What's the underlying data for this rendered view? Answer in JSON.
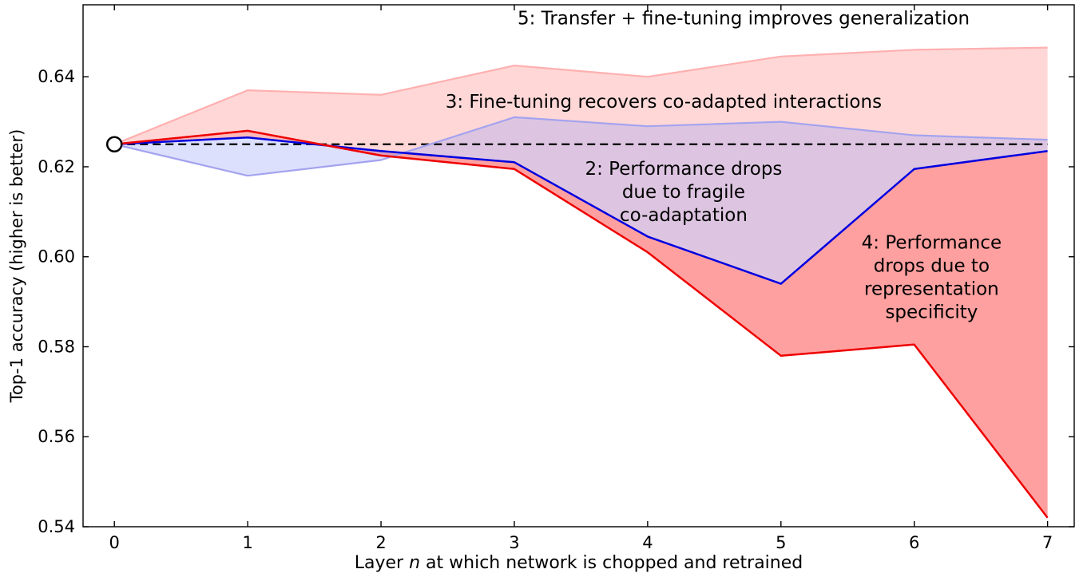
{
  "figure": {
    "background": "#ffffff",
    "frame_color": "#000000"
  },
  "chart_data": {
    "type": "line",
    "title": "",
    "xlabel_prefix": "Layer ",
    "xlabel_var": "n",
    "xlabel_suffix": " at which network is chopped and retrained",
    "ylabel": "Top-1 accuracy (higher is better)",
    "x": [
      0,
      1,
      2,
      3,
      4,
      5,
      6,
      7
    ],
    "xtick_labels": [
      "0",
      "1",
      "2",
      "3",
      "4",
      "5",
      "6",
      "7"
    ],
    "yticks": [
      0.54,
      0.56,
      0.58,
      0.6,
      0.62,
      0.64
    ],
    "ytick_labels": [
      "0.54",
      "0.56",
      "0.58",
      "0.60",
      "0.62",
      "0.64"
    ],
    "xlim": [
      -0.235,
      7.2
    ],
    "ylim": [
      0.54,
      0.656
    ],
    "grid": false,
    "legend": "none",
    "baseline": {
      "value": 0.625,
      "x_start": 0,
      "x_end": 7,
      "color": "#000000",
      "dash": "10 6",
      "width": 2.2
    },
    "start_marker": {
      "x": 0,
      "y": 0.625,
      "shape": "circle",
      "radius": 9,
      "fill": "#ffffff",
      "stroke": "#000000",
      "stroke_width": 2.5
    },
    "series": [
      {
        "id": "transfer-finetune",
        "region_number": "5",
        "color": "#ffb0b0",
        "width": 2.2,
        "values": [
          0.625,
          0.637,
          0.636,
          0.6425,
          0.64,
          0.6445,
          0.646,
          0.6465
        ]
      },
      {
        "id": "finetune-recovery",
        "region_number": "3",
        "color": "#a3a3ef",
        "width": 2.2,
        "values": [
          0.625,
          0.618,
          0.6215,
          0.631,
          0.629,
          0.63,
          0.627,
          0.626
        ]
      },
      {
        "id": "fragile-coadaptation",
        "region_number": "2",
        "color": "#0000e0",
        "width": 2.5,
        "values": [
          0.625,
          0.6265,
          0.6235,
          0.621,
          0.6045,
          0.594,
          0.6195,
          0.6235
        ]
      },
      {
        "id": "representation-specificity",
        "region_number": "4",
        "color": "#ee0000",
        "width": 2.5,
        "values": [
          0.625,
          0.628,
          0.6225,
          0.6195,
          0.601,
          0.578,
          0.5805,
          0.542
        ]
      }
    ],
    "fills": [
      {
        "upper": "transfer-finetune",
        "lower": "representation-specificity",
        "color": "rgba(255,160,160,0.42)"
      },
      {
        "upper": "fragile-coadaptation",
        "lower": "representation-specificity",
        "color": "rgba(255,70,70,0.38)"
      },
      {
        "upper": "finetune-recovery",
        "lower": "fragile-coadaptation",
        "color": "rgba(150,160,245,0.32)"
      }
    ],
    "annotations": [
      {
        "id": "ann-5",
        "lines": [
          "5: Transfer + fine-tuning improves generalization"
        ],
        "x": 4.72,
        "y": 0.6531,
        "font_size": 23
      },
      {
        "id": "ann-3",
        "lines": [
          "3: Fine-tuning recovers co-adapted interactions"
        ],
        "x": 4.12,
        "y": 0.6345,
        "font_size": 23
      },
      {
        "id": "ann-2",
        "lines": [
          "2: Performance drops",
          "due to fragile",
          "co-adaptation"
        ],
        "x": 4.27,
        "y": 0.6145,
        "font_size": 23
      },
      {
        "id": "ann-4",
        "lines": [
          "4: Performance",
          "drops due to",
          "representation",
          "specificity"
        ],
        "x": 6.13,
        "y": 0.5955,
        "font_size": 23
      }
    ]
  }
}
